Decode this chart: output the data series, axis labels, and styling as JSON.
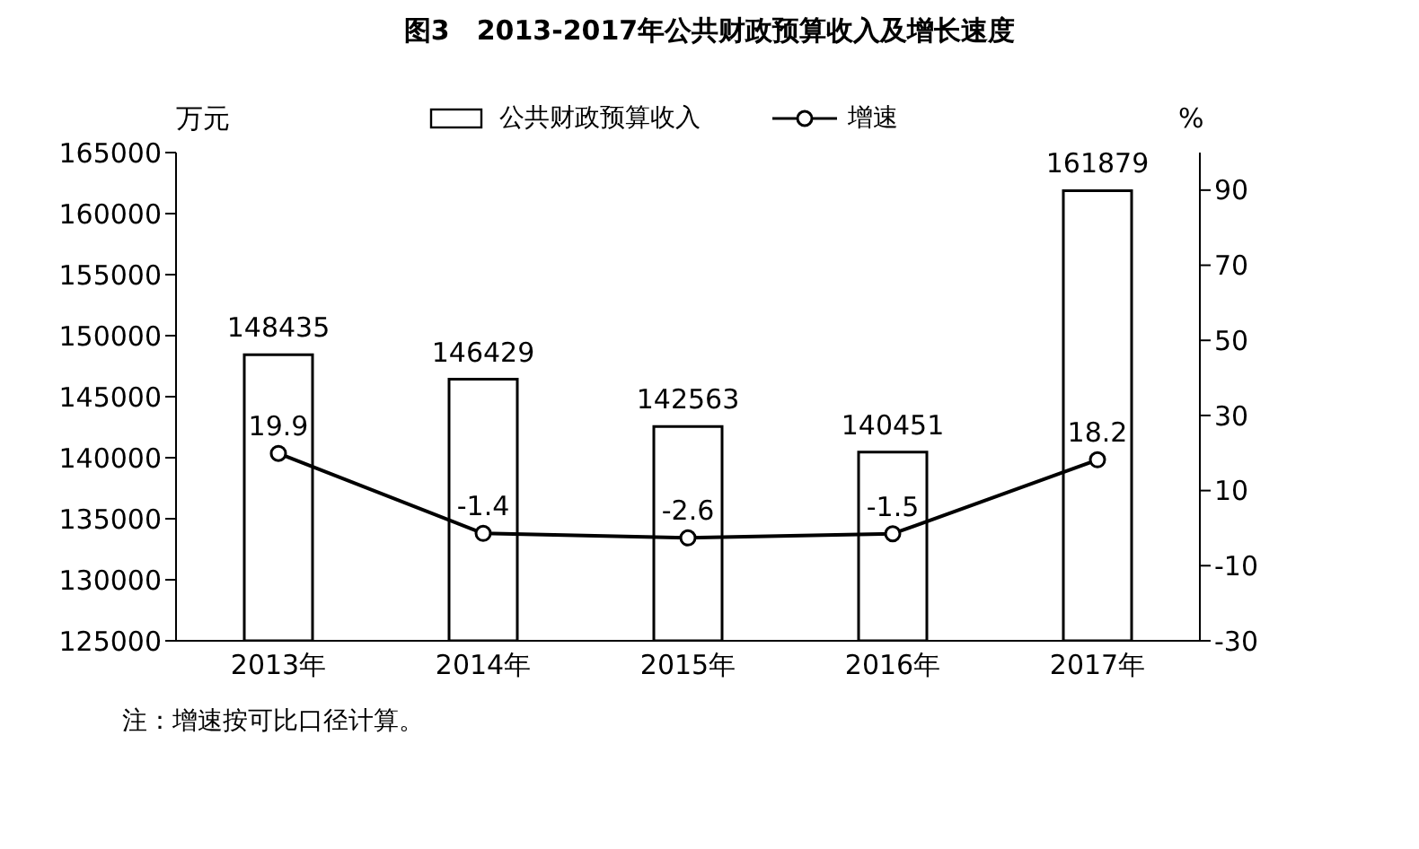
{
  "chart_data": {
    "type": "bar",
    "title": "图3　2013-2017年公共财政预算收入及增长速度",
    "ylabel": "万元",
    "y2label": "%",
    "categories": [
      "2013年",
      "2014年",
      "2015年",
      "2016年",
      "2017年"
    ],
    "series": [
      {
        "name": "公共财政预算收入",
        "color": "#ffffff",
        "values": [
          148435,
          146429,
          142563,
          140451,
          161879
        ]
      },
      {
        "name": "增速",
        "type": "line",
        "axis": "y2",
        "color": "#000000",
        "marker": "circle",
        "values": [
          19.9,
          -1.4,
          -2.6,
          -1.5,
          18.2
        ]
      }
    ],
    "ylim": [
      125000,
      165000
    ],
    "yticks": [
      125000,
      130000,
      135000,
      140000,
      145000,
      150000,
      155000,
      160000,
      165000
    ],
    "y2lim": [
      -30,
      100
    ],
    "y2ticks": [
      -30,
      -10,
      10,
      30,
      50,
      70,
      90
    ],
    "data_labels": true,
    "legend": "top",
    "annotations": [
      "注：增速按可比口径计算。"
    ]
  }
}
